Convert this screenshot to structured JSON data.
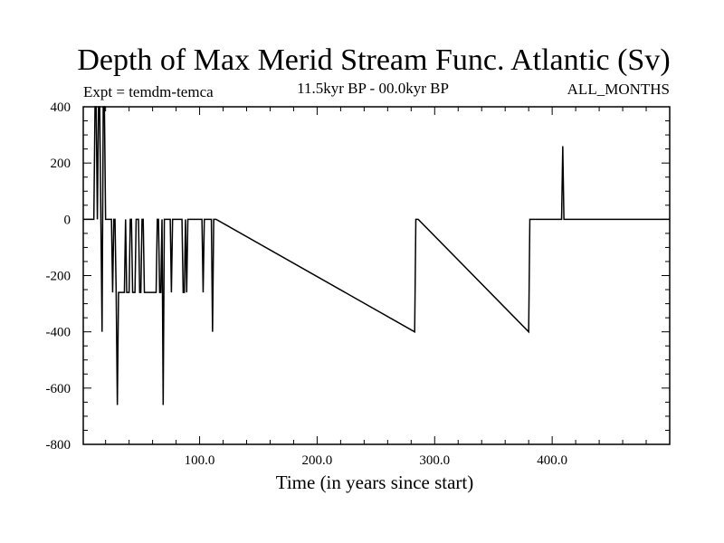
{
  "chart_data": {
    "type": "line",
    "title": "Depth of Max Merid Stream Func. Atlantic (Sv)",
    "experiment": "Expt = temdm-temca",
    "period": "11.5kyr BP - 00.0kyr BP",
    "months": "ALL_MONTHS",
    "xlabel": "Time (in years since start)",
    "ylabel": "",
    "xlim": [
      1,
      500
    ],
    "ylim": [
      -800,
      400
    ],
    "x_ticks": [
      100,
      200,
      300,
      400
    ],
    "x_tick_labels": [
      "100.0",
      "200.0",
      "300.0",
      "400.0"
    ],
    "y_ticks": [
      400,
      200,
      0,
      -200,
      -400,
      -600,
      -800
    ],
    "y_tick_labels": [
      "400",
      "200",
      "0",
      "-200",
      "-400",
      "-600",
      "-800"
    ],
    "grid": false,
    "legend": "none",
    "line_color": "#000000",
    "series": [
      {
        "x": [
          1,
          10,
          11,
          12,
          13,
          14,
          15,
          16,
          17,
          18,
          19,
          20,
          21,
          22,
          23,
          24,
          25,
          26,
          27,
          28,
          29,
          30,
          31,
          32,
          33,
          34,
          35,
          36,
          37,
          38,
          39,
          40,
          41,
          42,
          43,
          44,
          45,
          46,
          47,
          48,
          49,
          50,
          51,
          52,
          53,
          54,
          55,
          56,
          57,
          58,
          59,
          60,
          61,
          62,
          63,
          64,
          65,
          66,
          67,
          68,
          69,
          70,
          71,
          72,
          73,
          74,
          75,
          76,
          77,
          78,
          79,
          80,
          81,
          82,
          83,
          84,
          85,
          86,
          87,
          88,
          89,
          90,
          91,
          92,
          93,
          94,
          95,
          96,
          97,
          98,
          99,
          100,
          101,
          102,
          103,
          104,
          105,
          106,
          107,
          108,
          109,
          110,
          111,
          112,
          113,
          114,
          283,
          284,
          285,
          286,
          380,
          381,
          382,
          383,
          408,
          409,
          410,
          411,
          451,
          452,
          453,
          454,
          500
        ],
        "y": [
          0,
          0,
          400,
          400,
          0,
          400,
          400,
          0,
          -400,
          400,
          400,
          0,
          0,
          0,
          0,
          0,
          0,
          -260,
          0,
          0,
          -260,
          -660,
          -260,
          -260,
          -260,
          -260,
          -260,
          -260,
          0,
          -260,
          -260,
          -260,
          0,
          0,
          -260,
          -260,
          -260,
          0,
          0,
          0,
          -260,
          -260,
          0,
          0,
          -260,
          -260,
          -260,
          -260,
          -260,
          -260,
          -260,
          -260,
          -260,
          -260,
          -260,
          0,
          0,
          -260,
          -260,
          0,
          -660,
          0,
          0,
          0,
          0,
          0,
          0,
          -260,
          0,
          0,
          0,
          0,
          0,
          0,
          0,
          0,
          0,
          -260,
          -260,
          0,
          -260,
          0,
          0,
          0,
          0,
          0,
          0,
          0,
          0,
          0,
          0,
          0,
          0,
          0,
          -260,
          0,
          0,
          0,
          0,
          0,
          0,
          0,
          -400,
          0,
          0,
          0,
          -400,
          0,
          0,
          0,
          -400,
          0,
          0,
          0,
          0,
          260,
          0,
          0,
          0,
          0,
          0,
          0,
          0
        ]
      }
    ]
  }
}
